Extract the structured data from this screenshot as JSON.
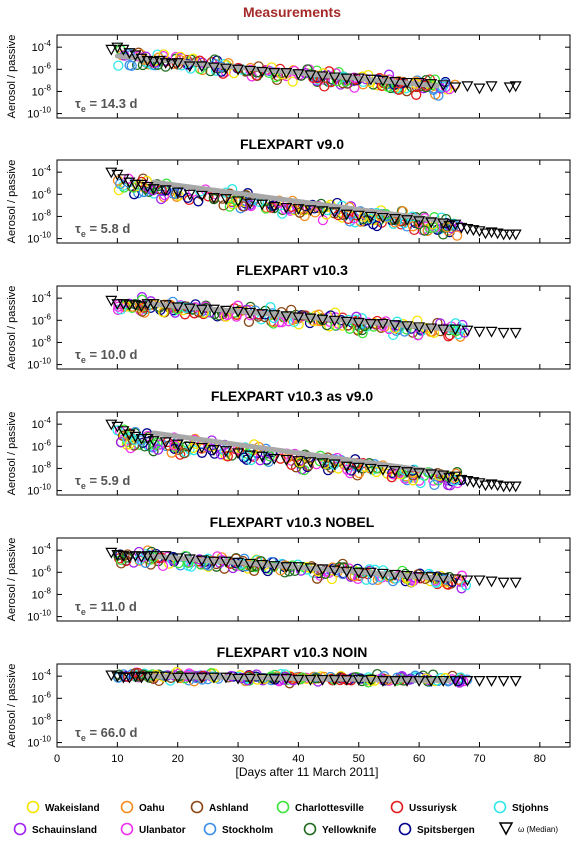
{
  "figure": {
    "xlabel": "[Days after 11 March 2011]",
    "ylabel": "Aerosol / passive",
    "x_ticks": [
      0,
      10,
      20,
      30,
      40,
      50,
      60,
      70,
      80
    ],
    "y_exponents": [
      -4,
      -6,
      -8,
      -10
    ],
    "y_tick_prefix": "10"
  },
  "colors": {
    "Wakeisland": "#f5e400",
    "Oahu": "#f58c1e",
    "Ashland": "#8b4513",
    "Charlottesville": "#3be33b",
    "Ussuriysk": "#e31a1c",
    "Stjohns": "#2ee8e8",
    "Schauinsland": "#a020f0",
    "Ulanbator": "#ee30ee",
    "Stockholm": "#3a8fe8",
    "Yellowknife": "#1f6b1f",
    "Spitsbergen": "#00008b",
    "median": "#000000",
    "fit": "#a8a8a8",
    "title_red": "#a52a2a",
    "tau": "#555555"
  },
  "legend": {
    "row1": [
      "Wakeisland",
      "Oahu",
      "Ashland",
      "Charlottesville",
      "Ussuriysk",
      "Stjohns"
    ],
    "row2": [
      "Schauinsland",
      "Ulanbator",
      "Stockholm",
      "Yellowknife",
      "Spitsbergen"
    ],
    "median_label": "ω (Median)"
  },
  "chart_data": [
    {
      "type": "scatter",
      "title": "Measurements",
      "tau": "τ",
      "tau_sub": "e",
      "tau_value": "= 14.3 d",
      "xlim": [
        0,
        85
      ],
      "ylim": [
        -10.4,
        -2.9
      ],
      "y_scale": "log10",
      "fit_line": {
        "x": [
          10,
          63
        ],
        "log10_y": [
          -4.8,
          -7.5
        ]
      },
      "median": {
        "x": [
          9,
          10,
          11,
          12,
          13,
          14,
          15,
          16,
          17,
          18,
          19,
          20,
          22,
          24,
          26,
          28,
          30,
          32,
          34,
          36,
          38,
          40,
          42,
          44,
          46,
          48,
          50,
          52,
          54,
          56,
          58,
          60,
          62,
          64,
          66,
          68,
          70,
          72,
          75,
          76
        ],
        "log10_y": [
          -4.2,
          -4.0,
          -4.2,
          -4.5,
          -4.7,
          -5.0,
          -5.2,
          -5.3,
          -5.2,
          -5.4,
          -5.5,
          -5.4,
          -5.7,
          -5.7,
          -5.8,
          -5.9,
          -6.0,
          -6.1,
          -6.2,
          -6.3,
          -6.3,
          -6.4,
          -6.5,
          -6.6,
          -6.7,
          -6.8,
          -6.8,
          -6.9,
          -7.0,
          -7.1,
          -7.2,
          -7.2,
          -7.3,
          -7.4,
          -7.6,
          -7.5,
          -7.7,
          -7.5,
          -7.6,
          -7.5
        ]
      },
      "scatter": {
        "center": [
          10,
          -4.9
        ],
        "slope": -0.052,
        "spread": 0.55,
        "x_end": 66
      }
    },
    {
      "type": "scatter",
      "title": "FLEXPART v9.0",
      "tau": "τ",
      "tau_sub": "e",
      "tau_value": "= 5.8 d",
      "xlim": [
        0,
        85
      ],
      "ylim": [
        -10.4,
        -2.9
      ],
      "y_scale": "log10",
      "fit_line": {
        "x": [
          16,
          64
        ],
        "log10_y": [
          -4.9,
          -8.4
        ]
      },
      "median": {
        "x": [
          9,
          10,
          11,
          12,
          13,
          14,
          15,
          16,
          18,
          20,
          22,
          24,
          26,
          28,
          30,
          32,
          34,
          36,
          38,
          40,
          42,
          44,
          46,
          48,
          50,
          52,
          54,
          56,
          58,
          60,
          62,
          64,
          65,
          66,
          67,
          68,
          69,
          70,
          71,
          72,
          73,
          74,
          75,
          76
        ],
        "log10_y": [
          -4.0,
          -4.2,
          -4.6,
          -4.9,
          -5.1,
          -5.1,
          -5.3,
          -5.5,
          -5.6,
          -5.8,
          -6.0,
          -6.1,
          -6.3,
          -6.4,
          -6.6,
          -6.8,
          -6.9,
          -7.1,
          -7.2,
          -7.3,
          -7.4,
          -7.5,
          -7.6,
          -7.8,
          -7.9,
          -8.0,
          -8.1,
          -8.2,
          -8.3,
          -8.4,
          -8.5,
          -8.6,
          -8.8,
          -8.7,
          -9.0,
          -9.1,
          -9.2,
          -9.3,
          -9.5,
          -9.4,
          -9.5,
          -9.6,
          -9.6,
          -9.6
        ]
      },
      "scatter": {
        "center": [
          10,
          -5.2
        ],
        "slope": -0.068,
        "spread": 0.7,
        "x_end": 67
      }
    },
    {
      "type": "scatter",
      "title": "FLEXPART v10.3",
      "tau": "τ",
      "tau_sub": "e",
      "tau_value": "= 10.0 d",
      "xlim": [
        0,
        85
      ],
      "ylim": [
        -10.4,
        -2.9
      ],
      "y_scale": "log10",
      "fit_line": {
        "x": [
          15,
          65
        ],
        "log10_y": [
          -4.5,
          -6.8
        ]
      },
      "median": {
        "x": [
          9,
          10,
          11,
          12,
          13,
          14,
          15,
          16,
          18,
          20,
          22,
          24,
          26,
          28,
          30,
          32,
          34,
          36,
          38,
          40,
          42,
          44,
          46,
          48,
          50,
          52,
          54,
          56,
          58,
          60,
          62,
          64,
          66,
          68,
          70,
          72,
          74,
          76
        ],
        "log10_y": [
          -4.2,
          -4.5,
          -4.5,
          -4.6,
          -4.6,
          -4.7,
          -4.5,
          -4.5,
          -4.6,
          -4.8,
          -4.9,
          -5.0,
          -5.0,
          -5.1,
          -5.2,
          -5.3,
          -5.4,
          -5.5,
          -5.6,
          -5.7,
          -5.8,
          -5.9,
          -6.0,
          -6.1,
          -6.2,
          -6.3,
          -6.3,
          -6.4,
          -6.5,
          -6.6,
          -6.7,
          -6.8,
          -6.8,
          -6.9,
          -7.0,
          -7.0,
          -7.1,
          -7.1
        ]
      },
      "scatter": {
        "center": [
          10,
          -4.5
        ],
        "slope": -0.045,
        "spread": 0.55,
        "x_end": 68
      }
    },
    {
      "type": "scatter",
      "title": "FLEXPART v10.3   as v9.0",
      "tau": "τ",
      "tau_sub": "e",
      "tau_value": "= 5.9 d",
      "xlim": [
        0,
        85
      ],
      "ylim": [
        -10.4,
        -2.9
      ],
      "y_scale": "log10",
      "fit_line": {
        "x": [
          16,
          64
        ],
        "log10_y": [
          -4.8,
          -8.4
        ]
      },
      "median": {
        "x": [
          9,
          10,
          11,
          12,
          13,
          14,
          15,
          16,
          18,
          20,
          22,
          24,
          26,
          28,
          30,
          32,
          34,
          36,
          38,
          40,
          42,
          44,
          46,
          48,
          50,
          52,
          54,
          56,
          58,
          60,
          62,
          64,
          65,
          66,
          67,
          68,
          69,
          70,
          71,
          72,
          73,
          74,
          75,
          76
        ],
        "log10_y": [
          -4.0,
          -4.2,
          -4.6,
          -4.9,
          -5.1,
          -5.3,
          -5.3,
          -5.5,
          -5.6,
          -5.8,
          -6.0,
          -6.1,
          -6.3,
          -6.4,
          -6.6,
          -6.8,
          -6.9,
          -7.1,
          -7.2,
          -7.3,
          -7.4,
          -7.5,
          -7.6,
          -7.8,
          -7.9,
          -8.0,
          -8.1,
          -8.2,
          -8.3,
          -8.4,
          -8.5,
          -8.6,
          -8.8,
          -8.7,
          -9.0,
          -9.1,
          -9.2,
          -9.3,
          -9.5,
          -9.4,
          -9.5,
          -9.6,
          -9.6,
          -9.6
        ]
      },
      "scatter": {
        "center": [
          10,
          -5.2
        ],
        "slope": -0.068,
        "spread": 0.7,
        "x_end": 67
      }
    },
    {
      "type": "scatter",
      "title": "FLEXPART v10.3   NOBEL",
      "tau": "τ",
      "tau_sub": "e",
      "tau_value": "= 11.0 d",
      "xlim": [
        0,
        85
      ],
      "ylim": [
        -10.4,
        -2.9
      ],
      "y_scale": "log10",
      "fit_line": {
        "x": [
          15,
          65
        ],
        "log10_y": [
          -4.5,
          -6.6
        ]
      },
      "median": {
        "x": [
          9,
          10,
          11,
          12,
          13,
          14,
          15,
          16,
          18,
          20,
          22,
          24,
          26,
          28,
          30,
          32,
          34,
          36,
          38,
          40,
          42,
          44,
          46,
          48,
          50,
          52,
          54,
          56,
          58,
          60,
          62,
          64,
          66,
          68,
          70,
          72,
          74,
          76
        ],
        "log10_y": [
          -4.2,
          -4.4,
          -4.5,
          -4.6,
          -4.5,
          -4.6,
          -4.5,
          -4.5,
          -4.5,
          -4.7,
          -4.8,
          -4.9,
          -5.0,
          -5.0,
          -5.1,
          -5.2,
          -5.3,
          -5.4,
          -5.5,
          -5.5,
          -5.6,
          -5.7,
          -5.8,
          -5.9,
          -6.0,
          -6.0,
          -6.1,
          -6.2,
          -6.3,
          -6.4,
          -6.4,
          -6.5,
          -6.6,
          -6.7,
          -6.7,
          -6.8,
          -6.9,
          -6.9
        ]
      },
      "scatter": {
        "center": [
          10,
          -4.4
        ],
        "slope": -0.042,
        "spread": 0.5,
        "x_end": 68
      }
    },
    {
      "type": "scatter",
      "title": "FLEXPART v10.3   NOIN",
      "tau": "τ",
      "tau_sub": "e",
      "tau_value": "= 66.0 d",
      "xlim": [
        0,
        85
      ],
      "ylim": [
        -10.4,
        -2.9
      ],
      "y_scale": "log10",
      "fit_line": {
        "x": [
          15,
          65
        ],
        "log10_y": [
          -4.0,
          -4.4
        ]
      },
      "median": {
        "x": [
          9,
          10,
          11,
          12,
          13,
          14,
          15,
          16,
          18,
          20,
          22,
          24,
          26,
          28,
          30,
          32,
          34,
          36,
          38,
          40,
          42,
          44,
          46,
          48,
          50,
          52,
          54,
          56,
          58,
          60,
          62,
          64,
          66,
          68,
          70,
          72,
          74,
          76
        ],
        "log10_y": [
          -3.9,
          -4.0,
          -4.1,
          -4.1,
          -4.0,
          -4.1,
          -4.0,
          -4.0,
          -4.0,
          -4.1,
          -4.1,
          -4.1,
          -4.1,
          -4.1,
          -4.2,
          -4.2,
          -4.2,
          -4.2,
          -4.2,
          -4.3,
          -4.3,
          -4.3,
          -4.3,
          -4.3,
          -4.3,
          -4.3,
          -4.4,
          -4.4,
          -4.4,
          -4.4,
          -4.4,
          -4.4,
          -4.4,
          -4.4,
          -4.4,
          -4.4,
          -4.4,
          -4.4
        ]
      },
      "scatter": {
        "center": [
          10,
          -4.0
        ],
        "slope": -0.006,
        "spread": 0.3,
        "x_end": 68
      }
    }
  ]
}
